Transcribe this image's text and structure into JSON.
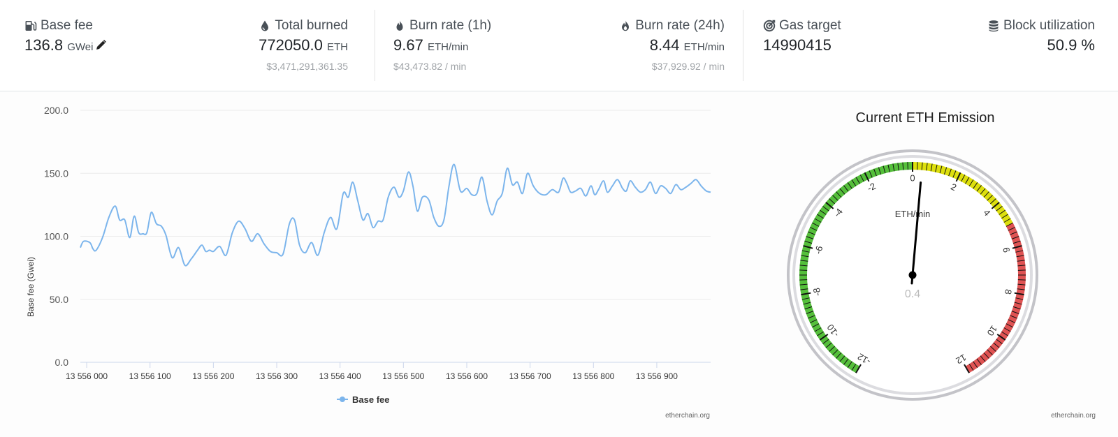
{
  "stats": {
    "base_fee": {
      "label": "Base fee",
      "value": "136.8",
      "unit": "GWei"
    },
    "total_burned": {
      "label": "Total burned",
      "value": "772050.0",
      "unit": "ETH",
      "sub": "$3,471,291,361.35"
    },
    "burn_1h": {
      "label": "Burn rate (1h)",
      "value": "9.67",
      "unit": "ETH/min",
      "sub": "$43,473.82 / min"
    },
    "burn_24h": {
      "label": "Burn rate (24h)",
      "value": "8.44",
      "unit": "ETH/min",
      "sub": "$37,929.92 / min"
    },
    "gas_target": {
      "label": "Gas target",
      "value": "14990415"
    },
    "block_util": {
      "label": "Block utilization",
      "value": "50.9 %"
    }
  },
  "icons": {
    "base_fee": "gas-pump-icon",
    "total_burned": "droplet-icon",
    "burn_1h": "fire-icon",
    "burn_24h": "fire-alt-icon",
    "gas_target": "bullseye-icon",
    "block_util": "database-icon",
    "edit": "pencil-icon"
  },
  "chart_data": [
    {
      "type": "line",
      "title": "",
      "xlabel": "",
      "ylabel": "Base fee (Gwei)",
      "ylim": [
        0,
        200
      ],
      "yticks": [
        "0.0",
        "50.0",
        "100.0",
        "150.0",
        "200.0"
      ],
      "xticks": [
        "13 556 000",
        "13 556 100",
        "13 556 200",
        "13 556 300",
        "13 556 400",
        "13 556 500",
        "13 556 600",
        "13 556 700",
        "13 556 800",
        "13 556 900"
      ],
      "xlim": [
        13555990,
        13556985
      ],
      "legend": "Base fee",
      "credit": "etherchain.org",
      "color": "#7cb5ec",
      "series": [
        {
          "name": "Base fee",
          "x": [
            13555990,
            13555995,
            13556005,
            13556010,
            13556015,
            13556025,
            13556035,
            13556045,
            13556052,
            13556060,
            13556068,
            13556075,
            13556082,
            13556089,
            13556095,
            13556102,
            13556110,
            13556118,
            13556125,
            13556135,
            13556145,
            13556155,
            13556165,
            13556175,
            13556182,
            13556188,
            13556194,
            13556200,
            13556210,
            13556220,
            13556230,
            13556240,
            13556250,
            13556260,
            13556270,
            13556280,
            13556290,
            13556300,
            13556310,
            13556320,
            13556328,
            13556336,
            13556345,
            13556355,
            13556365,
            13556375,
            13556385,
            13556395,
            13556405,
            13556413,
            13556420,
            13556428,
            13556436,
            13556444,
            13556452,
            13556460,
            13556468,
            13556476,
            13556485,
            13556493,
            13556500,
            13556508,
            13556515,
            13556522,
            13556530,
            13556540,
            13556548,
            13556556,
            13556564,
            13556572,
            13556580,
            13556590,
            13556600,
            13556608,
            13556616,
            13556624,
            13556632,
            13556640,
            13556648,
            13556656,
            13556664,
            13556672,
            13556680,
            13556688,
            13556696,
            13556705,
            13556715,
            13556725,
            13556735,
            13556745,
            13556752,
            13556758,
            13556764,
            13556772,
            13556780,
            13556788,
            13556796,
            13556802,
            13556808,
            13556816,
            13556822,
            13556830,
            13556838,
            13556846,
            13556852,
            13556858,
            13556866,
            13556874,
            13556882,
            13556890,
            13556898,
            13556906,
            13556914,
            13556922,
            13556930,
            13556938,
            13556946,
            13556954,
            13556962,
            13556970,
            13556978,
            13556985
          ],
          "values": [
            91,
            96,
            95,
            90,
            89,
            99,
            115,
            124,
            113,
            113,
            99,
            116,
            103,
            102,
            103,
            119,
            110,
            108,
            101,
            83,
            91,
            77,
            82,
            89,
            93,
            88,
            89,
            88,
            92,
            85,
            103,
            112,
            106,
            96,
            102,
            94,
            88,
            87,
            86,
            110,
            113,
            93,
            87,
            95,
            85,
            103,
            115,
            106,
            134,
            131,
            143,
            128,
            113,
            118,
            107,
            112,
            113,
            131,
            139,
            131,
            136,
            151,
            140,
            120,
            131,
            129,
            115,
            108,
            113,
            140,
            157,
            136,
            138,
            133,
            134,
            147,
            128,
            117,
            128,
            134,
            154,
            141,
            143,
            134,
            150,
            140,
            134,
            133,
            137,
            135,
            146,
            142,
            135,
            136,
            138,
            132,
            140,
            133,
            137,
            144,
            135,
            140,
            145,
            138,
            136,
            144,
            139,
            135,
            137,
            143,
            134,
            140,
            138,
            134,
            141,
            137,
            139,
            142,
            145,
            140,
            136,
            135
          ]
        }
      ]
    },
    {
      "type": "gauge",
      "title": "Current ETH Emission",
      "unit_label": "ETH/min",
      "min": -12,
      "max": 12,
      "value": 0.4,
      "value_label": "0.4",
      "tick_labels": [
        "-12",
        "-10",
        "-8",
        "-6",
        "-4",
        "-2",
        "0",
        "2",
        "4",
        "6",
        "8",
        "10",
        "12"
      ],
      "bands": [
        {
          "from": -12,
          "to": 0,
          "color": "#55bf3b"
        },
        {
          "from": 0,
          "to": 5,
          "color": "#dddf0d"
        },
        {
          "from": 5,
          "to": 12,
          "color": "#df5353"
        }
      ],
      "credit": "etherchain.org"
    }
  ]
}
